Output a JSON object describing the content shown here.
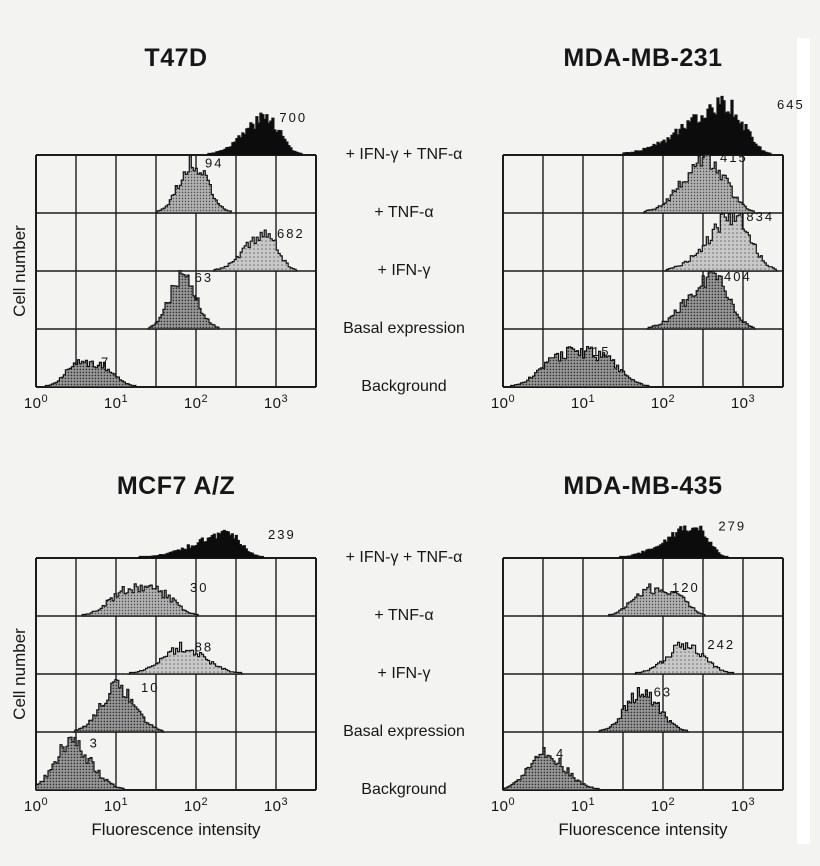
{
  "ylabel": "Cell number",
  "xlabel": "Fluorescence intensity",
  "x_ticks": [
    {
      "base": "10",
      "exp": "0"
    },
    {
      "base": "10",
      "exp": "1"
    },
    {
      "base": "10",
      "exp": "2"
    },
    {
      "base": "10",
      "exp": "3"
    }
  ],
  "conditions": [
    "+ IFN-γ + TNF-α",
    "+ TNF-α",
    "+ IFN-γ",
    "Basal expression",
    "Background"
  ],
  "colors": {
    "background": "#f3f3f1",
    "line": "#1c1c1c",
    "solid_fill": "#0c0c0c"
  },
  "chart_data": [
    {
      "type": "histogram",
      "title": "T47D",
      "ylabel": "Cell number",
      "x_scale": "log10",
      "x_range_decades": [
        0,
        3.5
      ],
      "x_tick_exponents": [
        0,
        1,
        2,
        3
      ],
      "grid": {
        "columns": 7,
        "rows": 4
      },
      "series": [
        {
          "condition": "+ IFN-γ + TNF-α",
          "label_value": "700",
          "peak_log10": 2.88,
          "sigma_left": 0.28,
          "sigma_right": 0.16,
          "rel_height": 0.64,
          "shape_power": 2,
          "fill": "black"
        },
        {
          "condition": "+ TNF-α",
          "label_value": "94",
          "peak_log10": 1.95,
          "sigma_left": 0.17,
          "sigma_right": 0.18,
          "rel_height": 0.85,
          "shape_power": 2,
          "fill": "med"
        },
        {
          "condition": "+ IFN-γ",
          "label_value": "682",
          "peak_log10": 2.85,
          "sigma_left": 0.24,
          "sigma_right": 0.15,
          "rel_height": 0.64,
          "shape_power": 2,
          "fill": "light"
        },
        {
          "condition": "Basal expression",
          "label_value": "63",
          "peak_log10": 1.82,
          "sigma_left": 0.16,
          "sigma_right": 0.17,
          "rel_height": 0.88,
          "shape_power": 2,
          "fill": "dark"
        },
        {
          "condition": "Background",
          "label_value": "7",
          "peak_log10": 0.65,
          "sigma_left": 0.28,
          "sigma_right": 0.3,
          "rel_height": 0.42,
          "shape_power": 3,
          "fill": "dark"
        }
      ]
    },
    {
      "type": "histogram",
      "title": "MDA-MB-231",
      "x_scale": "log10",
      "x_range_decades": [
        0,
        3.5
      ],
      "x_tick_exponents": [
        0,
        1,
        2,
        3
      ],
      "grid": {
        "columns": 7,
        "rows": 4
      },
      "series": [
        {
          "condition": "+ IFN-γ + TNF-α",
          "label_value": "645",
          "peak_log10": 2.8,
          "sigma_left": 0.5,
          "sigma_right": 0.2,
          "rel_height": 0.86,
          "shape_power": 2,
          "fill": "black",
          "label_dx": 50
        },
        {
          "condition": "+ TNF-α",
          "label_value": "415",
          "peak_log10": 2.55,
          "sigma_left": 0.3,
          "sigma_right": 0.22,
          "rel_height": 0.95,
          "shape_power": 2,
          "fill": "med"
        },
        {
          "condition": "+ IFN-γ",
          "label_value": "834",
          "peak_log10": 2.88,
          "sigma_left": 0.32,
          "sigma_right": 0.2,
          "rel_height": 0.93,
          "shape_power": 2,
          "fill": "light"
        },
        {
          "condition": "Basal expression",
          "label_value": "404",
          "peak_log10": 2.6,
          "sigma_left": 0.3,
          "sigma_right": 0.2,
          "rel_height": 0.9,
          "shape_power": 2,
          "fill": "dark"
        },
        {
          "condition": "Background",
          "label_value": "15",
          "peak_log10": 0.95,
          "sigma_left": 0.45,
          "sigma_right": 0.45,
          "rel_height": 0.6,
          "shape_power": 3,
          "fill": "dark"
        }
      ]
    },
    {
      "type": "histogram",
      "title": "MCF7 A/Z",
      "ylabel": "Cell number",
      "xlabel": "Fluorescence intensity",
      "x_scale": "log10",
      "x_range_decades": [
        0,
        3.5
      ],
      "x_tick_exponents": [
        0,
        1,
        2,
        3
      ],
      "grid": {
        "columns": 7,
        "rows": 4
      },
      "series": [
        {
          "condition": "+ IFN-γ + TNF-α",
          "label_value": "239",
          "peak_log10": 2.4,
          "sigma_left": 0.42,
          "sigma_right": 0.16,
          "rel_height": 0.4,
          "shape_power": 2,
          "fill": "black",
          "label_dx": 40
        },
        {
          "condition": "+ TNF-α",
          "label_value": "30",
          "peak_log10": 1.3,
          "sigma_left": 0.38,
          "sigma_right": 0.38,
          "rel_height": 0.48,
          "shape_power": 3,
          "fill": "med",
          "label_dx": 50
        },
        {
          "condition": "+ IFN-γ",
          "label_value": "88",
          "peak_log10": 1.82,
          "sigma_left": 0.25,
          "sigma_right": 0.28,
          "rel_height": 0.46,
          "shape_power": 2,
          "fill": "light"
        },
        {
          "condition": "Basal expression",
          "label_value": "10",
          "peak_log10": 1.0,
          "sigma_left": 0.2,
          "sigma_right": 0.22,
          "rel_height": 0.76,
          "shape_power": 2,
          "fill": "dark",
          "label_dx": 25
        },
        {
          "condition": "Background",
          "label_value": "3",
          "peak_log10": 0.42,
          "sigma_left": 0.2,
          "sigma_right": 0.25,
          "rel_height": 0.8,
          "shape_power": 2,
          "fill": "dark",
          "label_dx": 20
        }
      ]
    },
    {
      "type": "histogram",
      "title": "MDA-MB-435",
      "xlabel": "Fluorescence intensity",
      "x_scale": "log10",
      "x_range_decades": [
        0,
        3.5
      ],
      "x_tick_exponents": [
        0,
        1,
        2,
        3
      ],
      "grid": {
        "columns": 7,
        "rows": 4
      },
      "series": [
        {
          "condition": "+ IFN-γ + TNF-α",
          "label_value": "279",
          "peak_log10": 2.38,
          "sigma_left": 0.35,
          "sigma_right": 0.16,
          "rel_height": 0.54,
          "shape_power": 2,
          "fill": "black",
          "label_dx": 25
        },
        {
          "condition": "+ TNF-α",
          "label_value": "120",
          "peak_log10": 1.95,
          "sigma_left": 0.33,
          "sigma_right": 0.3,
          "rel_height": 0.48,
          "shape_power": 3,
          "fill": "med"
        },
        {
          "condition": "+ IFN-γ",
          "label_value": "242",
          "peak_log10": 2.28,
          "sigma_left": 0.24,
          "sigma_right": 0.22,
          "rel_height": 0.5,
          "shape_power": 2,
          "fill": "light",
          "label_dx": 22
        },
        {
          "condition": "Basal expression",
          "label_value": "63",
          "peak_log10": 1.72,
          "sigma_left": 0.2,
          "sigma_right": 0.22,
          "rel_height": 0.68,
          "shape_power": 2,
          "fill": "dark"
        },
        {
          "condition": "Background",
          "label_value": "4",
          "peak_log10": 0.5,
          "sigma_left": 0.2,
          "sigma_right": 0.26,
          "rel_height": 0.62,
          "shape_power": 2,
          "fill": "dark"
        }
      ]
    }
  ]
}
